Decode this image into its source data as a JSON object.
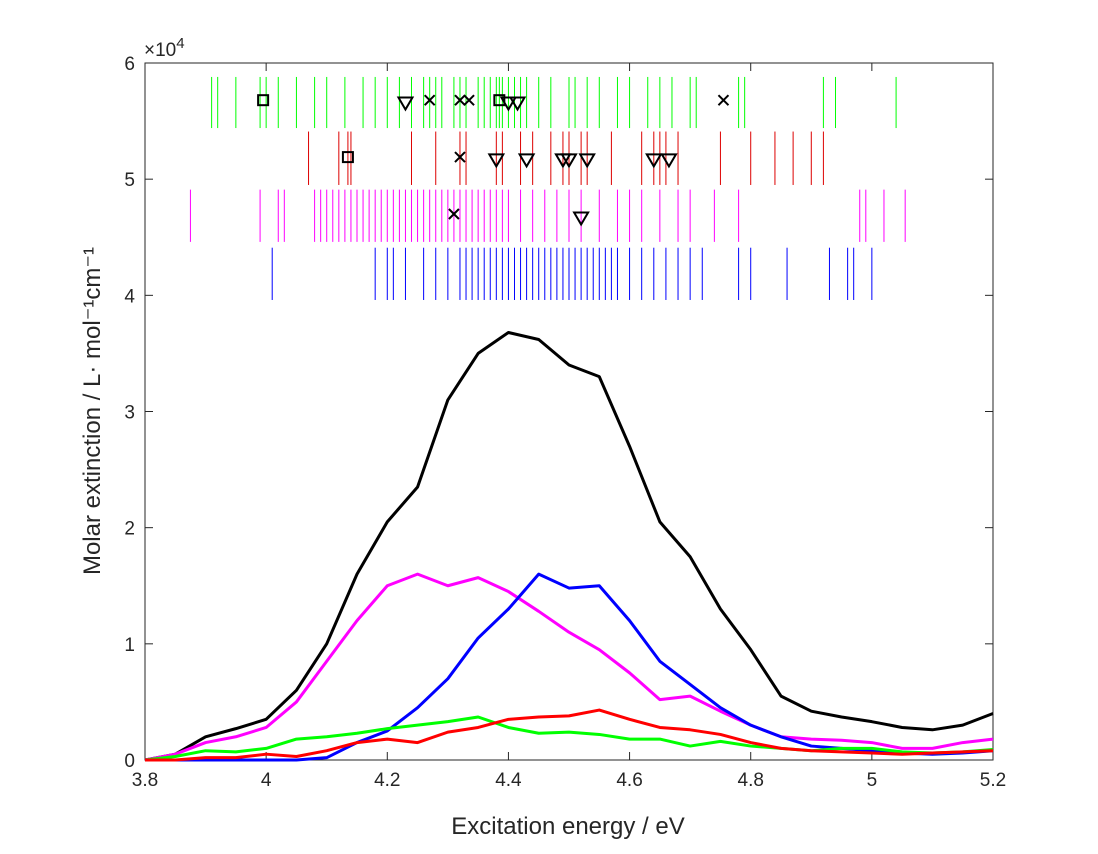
{
  "chart_data": {
    "type": "line",
    "xlabel": "Excitation energy / eV",
    "ylabel": "Molar extinction / L· mol⁻¹cm⁻¹",
    "y_multiplier": "×10",
    "y_multiplier_exponent": "4",
    "xlim": [
      3.8,
      5.2
    ],
    "xticks": [
      3.8,
      4,
      4.2,
      4.4,
      4.6,
      4.8,
      5,
      5.2
    ],
    "ylim": [
      0,
      6
    ],
    "yticks": [
      0,
      1,
      2,
      3,
      4,
      5,
      6
    ],
    "x": [
      3.8,
      3.85,
      3.9,
      3.95,
      4.0,
      4.05,
      4.1,
      4.15,
      4.2,
      4.25,
      4.3,
      4.35,
      4.4,
      4.45,
      4.5,
      4.55,
      4.6,
      4.65,
      4.7,
      4.75,
      4.8,
      4.85,
      4.9,
      4.95,
      5.0,
      5.05,
      5.1,
      5.15,
      5.2
    ],
    "series": [
      {
        "color": "#000000",
        "values": [
          0,
          0.05,
          0.2,
          0.27,
          0.35,
          0.6,
          1.0,
          1.6,
          2.05,
          2.35,
          3.1,
          3.5,
          3.68,
          3.62,
          3.4,
          3.3,
          2.7,
          2.05,
          1.75,
          1.3,
          0.95,
          0.55,
          0.42,
          0.37,
          0.33,
          0.28,
          0.26,
          0.3,
          0.4
        ]
      },
      {
        "color": "#ff00ff",
        "values": [
          0,
          0.05,
          0.15,
          0.2,
          0.28,
          0.5,
          0.85,
          1.2,
          1.5,
          1.6,
          1.5,
          1.57,
          1.45,
          1.28,
          1.1,
          0.95,
          0.75,
          0.52,
          0.55,
          0.42,
          0.3,
          0.2,
          0.18,
          0.17,
          0.15,
          0.1,
          0.1,
          0.15,
          0.18
        ]
      },
      {
        "color": "#0000ff",
        "values": [
          0,
          0,
          0,
          0,
          0,
          0,
          0.02,
          0.15,
          0.25,
          0.45,
          0.7,
          1.05,
          1.3,
          1.6,
          1.48,
          1.5,
          1.2,
          0.85,
          0.65,
          0.45,
          0.3,
          0.2,
          0.12,
          0.1,
          0.08,
          0.06,
          0.05,
          0.06,
          0.08
        ]
      },
      {
        "color": "#00ff00",
        "values": [
          0,
          0.03,
          0.08,
          0.07,
          0.1,
          0.18,
          0.2,
          0.23,
          0.27,
          0.3,
          0.33,
          0.37,
          0.28,
          0.23,
          0.24,
          0.22,
          0.18,
          0.18,
          0.12,
          0.16,
          0.12,
          0.1,
          0.08,
          0.1,
          0.1,
          0.07,
          0.06,
          0.07,
          0.09
        ]
      },
      {
        "color": "#ff0000",
        "values": [
          0,
          0,
          0.02,
          0.02,
          0.05,
          0.03,
          0.08,
          0.15,
          0.18,
          0.15,
          0.24,
          0.28,
          0.35,
          0.37,
          0.38,
          0.43,
          0.35,
          0.28,
          0.26,
          0.22,
          0.15,
          0.1,
          0.08,
          0.07,
          0.06,
          0.05,
          0.06,
          0.07,
          0.08
        ]
      }
    ],
    "sticks": [
      {
        "color": "#00ff00",
        "range": [
          5.44,
          5.88
        ],
        "x": [
          3.91,
          3.92,
          3.95,
          3.99,
          4.0,
          4.02,
          4.05,
          4.08,
          4.1,
          4.13,
          4.16,
          4.18,
          4.2,
          4.22,
          4.24,
          4.26,
          4.27,
          4.28,
          4.29,
          4.31,
          4.32,
          4.33,
          4.35,
          4.36,
          4.37,
          4.38,
          4.385,
          4.39,
          4.4,
          4.41,
          4.42,
          4.43,
          4.45,
          4.47,
          4.5,
          4.51,
          4.53,
          4.55,
          4.58,
          4.6,
          4.63,
          4.65,
          4.67,
          4.7,
          4.71,
          4.78,
          4.79,
          4.92,
          4.94,
          5.04
        ]
      },
      {
        "color": "#dd0000",
        "range": [
          4.95,
          5.41
        ],
        "x": [
          4.07,
          4.12,
          4.135,
          4.14,
          4.24,
          4.28,
          4.32,
          4.33,
          4.38,
          4.39,
          4.42,
          4.44,
          4.47,
          4.49,
          4.5,
          4.52,
          4.53,
          4.57,
          4.62,
          4.64,
          4.65,
          4.66,
          4.68,
          4.75,
          4.8,
          4.84,
          4.87,
          4.9,
          4.92
        ]
      },
      {
        "color": "#ff00ff",
        "range": [
          4.46,
          4.91
        ],
        "x": [
          3.875,
          3.99,
          4.02,
          4.03,
          4.08,
          4.09,
          4.1,
          4.11,
          4.12,
          4.13,
          4.14,
          4.15,
          4.16,
          4.17,
          4.18,
          4.19,
          4.2,
          4.21,
          4.22,
          4.23,
          4.24,
          4.25,
          4.26,
          4.27,
          4.28,
          4.29,
          4.3,
          4.31,
          4.32,
          4.33,
          4.34,
          4.35,
          4.36,
          4.37,
          4.38,
          4.39,
          4.4,
          4.42,
          4.44,
          4.46,
          4.48,
          4.5,
          4.52,
          4.55,
          4.58,
          4.6,
          4.62,
          4.65,
          4.68,
          4.7,
          4.74,
          4.78,
          4.98,
          4.99,
          5.02,
          5.055
        ]
      },
      {
        "color": "#0000ff",
        "range": [
          3.96,
          4.41
        ],
        "x": [
          4.01,
          4.18,
          4.2,
          4.21,
          4.23,
          4.26,
          4.28,
          4.3,
          4.32,
          4.33,
          4.34,
          4.35,
          4.36,
          4.37,
          4.38,
          4.39,
          4.4,
          4.41,
          4.42,
          4.43,
          4.44,
          4.45,
          4.46,
          4.47,
          4.48,
          4.49,
          4.5,
          4.51,
          4.52,
          4.53,
          4.54,
          4.55,
          4.56,
          4.57,
          4.58,
          4.6,
          4.62,
          4.64,
          4.66,
          4.68,
          4.7,
          4.72,
          4.78,
          4.8,
          4.86,
          4.93,
          4.96,
          4.97,
          5.0
        ]
      }
    ],
    "markers": [
      {
        "shape": "square",
        "x": [
          3.995,
          4.385,
          4.135
        ],
        "y": [
          5.68,
          5.68,
          5.19
        ]
      },
      {
        "shape": "triangle",
        "x": [
          4.23,
          4.4,
          4.415,
          4.38,
          4.43,
          4.49,
          4.5,
          4.53,
          4.64,
          4.665,
          4.52
        ],
        "y": [
          5.66,
          5.66,
          5.66,
          5.17,
          5.17,
          5.17,
          5.17,
          5.17,
          5.17,
          5.17,
          4.67
        ]
      },
      {
        "shape": "cross",
        "x": [
          4.27,
          4.32,
          4.335,
          4.755,
          4.32,
          4.31
        ],
        "y": [
          5.68,
          5.68,
          5.68,
          5.68,
          5.19,
          4.7
        ]
      }
    ]
  }
}
